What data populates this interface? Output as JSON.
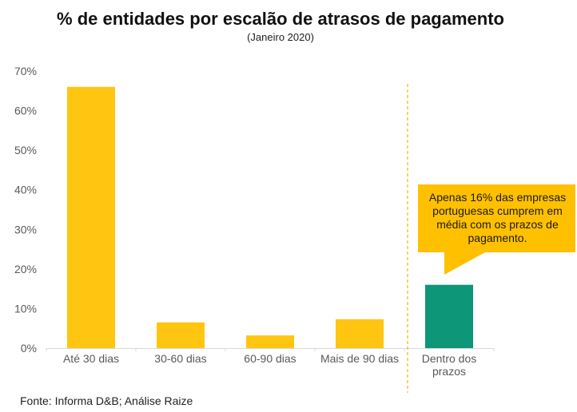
{
  "chart_data": {
    "type": "bar",
    "title": "% de entidades por escalão de atrasos de pagamento",
    "subtitle": "(Janeiro 2020)",
    "xlabel": "",
    "ylabel": "",
    "ylim": [
      0,
      70
    ],
    "yticks": [
      0,
      10,
      20,
      30,
      40,
      50,
      60,
      70
    ],
    "ytick_labels": [
      "0%",
      "10%",
      "20%",
      "30%",
      "40%",
      "50%",
      "60%",
      "70%"
    ],
    "grid": false,
    "legend": "none",
    "categories": [
      [
        "Até 30 dias"
      ],
      [
        "30-60 dias"
      ],
      [
        "60-90 dias"
      ],
      [
        "Mais de 90 dias"
      ],
      [
        "Dentro dos",
        "prazos"
      ]
    ],
    "values": [
      66,
      6.5,
      3.2,
      7.3,
      16
    ],
    "colors": [
      "#FFC510",
      "#FFC510",
      "#FFC510",
      "#FFC510",
      "#0E9678"
    ],
    "separator_after_index": 3,
    "separator_color": "#F5B800",
    "annotation": {
      "lines": [
        "Apenas 16% das empresas",
        "portuguesas cumprem em",
        "média com os prazos de",
        "pagamento."
      ],
      "points_to_index": 4,
      "background": "#FFC000"
    },
    "source": "Fonte: Informa D&B; Análise Raize"
  },
  "colors": {
    "axis": "#D9D9D9",
    "tick_text": "#595959"
  }
}
